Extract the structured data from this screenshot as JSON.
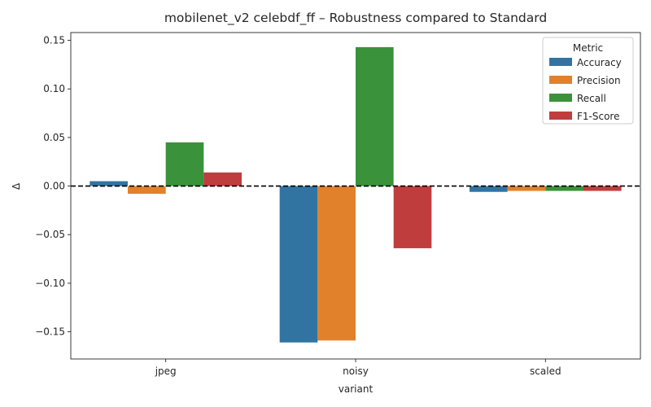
{
  "chart_data": {
    "type": "bar",
    "title": "mobilenet_v2 celebdf_ff – Robustness compared to Standard",
    "xlabel": "variant",
    "ylabel": "Δ",
    "categories": [
      "jpeg",
      "noisy",
      "scaled"
    ],
    "ylim": [
      -0.178,
      0.158
    ],
    "yticks": [
      -0.15,
      -0.1,
      -0.05,
      0.0,
      0.05,
      0.1,
      0.15
    ],
    "ytick_labels": [
      "−0.15",
      "−0.10",
      "−0.05",
      "0.00",
      "0.05",
      "0.10",
      "0.15"
    ],
    "reference_line": 0,
    "grid": false,
    "legend": {
      "title": "Metric",
      "placement": "top-right"
    },
    "series": [
      {
        "name": "Accuracy",
        "color": "#3274a1",
        "values": [
          0.005,
          -0.161,
          -0.006
        ]
      },
      {
        "name": "Precision",
        "color": "#e1812c",
        "values": [
          -0.008,
          -0.159,
          -0.005
        ]
      },
      {
        "name": "Recall",
        "color": "#3a923a",
        "values": [
          0.045,
          0.143,
          -0.005
        ]
      },
      {
        "name": "F1-Score",
        "color": "#c03d3e",
        "values": [
          0.014,
          -0.064,
          -0.005
        ]
      }
    ]
  }
}
